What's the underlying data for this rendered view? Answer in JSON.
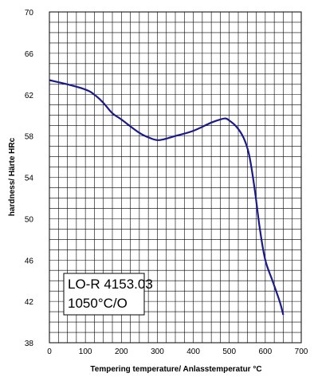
{
  "chart_data": {
    "type": "line",
    "xlabel": "Tempering temperature/ Anlasstemperatur °C",
    "ylabel": "hardness/ Härte HRc",
    "xlim": [
      0,
      700
    ],
    "ylim": [
      38,
      70
    ],
    "xticks": [
      0,
      100,
      200,
      300,
      400,
      500,
      600,
      700
    ],
    "yticks": [
      38,
      42,
      46,
      50,
      54,
      58,
      62,
      66,
      70
    ],
    "grid": true,
    "annotation": [
      "LO-R 4153.03",
      "1050°C/O"
    ],
    "line_color": "#1a1a8c",
    "series": [
      {
        "x": [
          0,
          50,
          100,
          125,
          150,
          175,
          200,
          250,
          280,
          300,
          320,
          350,
          400,
          450,
          475,
          490,
          500,
          520,
          540,
          555,
          570,
          585,
          600,
          620,
          640,
          650
        ],
        "y": [
          63.4,
          63.0,
          62.5,
          62.0,
          61.2,
          60.2,
          59.6,
          58.3,
          57.8,
          57.6,
          57.7,
          58.0,
          58.5,
          59.3,
          59.6,
          59.7,
          59.5,
          58.9,
          57.8,
          56.2,
          53.0,
          49.0,
          46.0,
          44.0,
          42.0,
          40.7
        ]
      }
    ]
  }
}
